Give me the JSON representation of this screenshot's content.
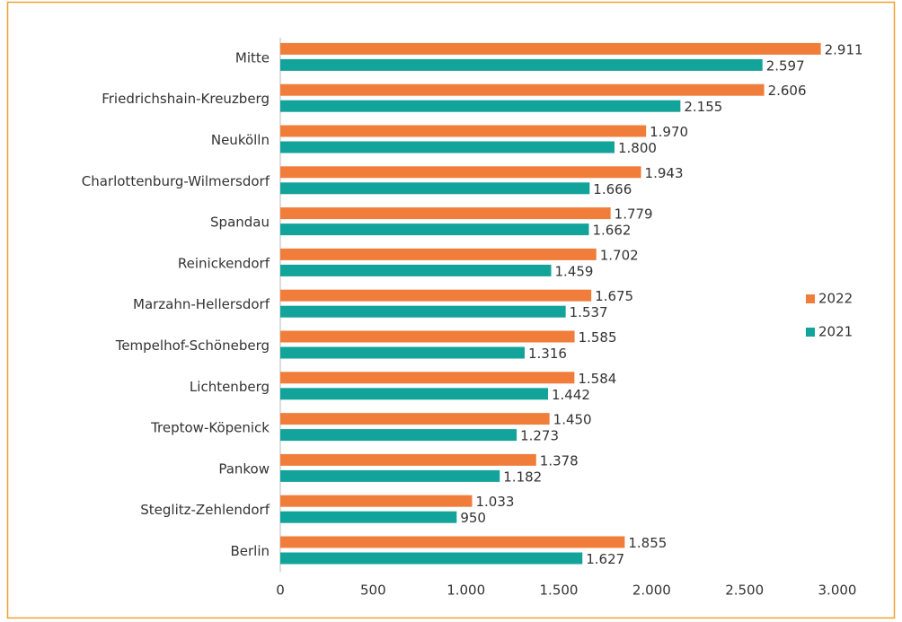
{
  "chart_data": {
    "type": "bar",
    "orientation": "horizontal",
    "categories": [
      "Mitte",
      "Friedrichshain-Kreuzberg",
      "Neukölln",
      "Charlottenburg-Wilmersdorf",
      "Spandau",
      "Reinickendorf",
      "Marzahn-Hellersdorf",
      "Tempelhof-Schöneberg",
      "Lichtenberg",
      "Treptow-Köpenick",
      "Pankow",
      "Steglitz-Zehlendorf",
      "Berlin"
    ],
    "series": [
      {
        "name": "2022",
        "color": "#f07e3a",
        "values": [
          2911,
          2606,
          1970,
          1943,
          1779,
          1702,
          1675,
          1585,
          1584,
          1450,
          1378,
          1033,
          1855
        ],
        "value_labels": [
          "2.911",
          "2.606",
          "1.970",
          "1.943",
          "1.779",
          "1.702",
          "1.675",
          "1.585",
          "1.584",
          "1.450",
          "1.378",
          "1.033",
          "1.855"
        ]
      },
      {
        "name": "2021",
        "color": "#12a39a",
        "values": [
          2597,
          2155,
          1800,
          1666,
          1662,
          1459,
          1537,
          1316,
          1442,
          1273,
          1182,
          950,
          1627
        ],
        "value_labels": [
          "2.597",
          "2.155",
          "1.800",
          "1.666",
          "1.662",
          "1.459",
          "1.537",
          "1.316",
          "1.442",
          "1.273",
          "1.182",
          "950",
          "1.627"
        ]
      }
    ],
    "xlim": [
      0,
      3000
    ],
    "xticks": [
      0,
      500,
      {
        "value": 1000,
        "label": "1.000"
      },
      {
        "value": 1500,
        "label": "1.500"
      },
      {
        "value": 2000,
        "label": "2.000"
      },
      {
        "value": 2500,
        "label": "2.500"
      },
      {
        "value": 3000,
        "label": "3.000"
      }
    ],
    "legend": "right"
  }
}
